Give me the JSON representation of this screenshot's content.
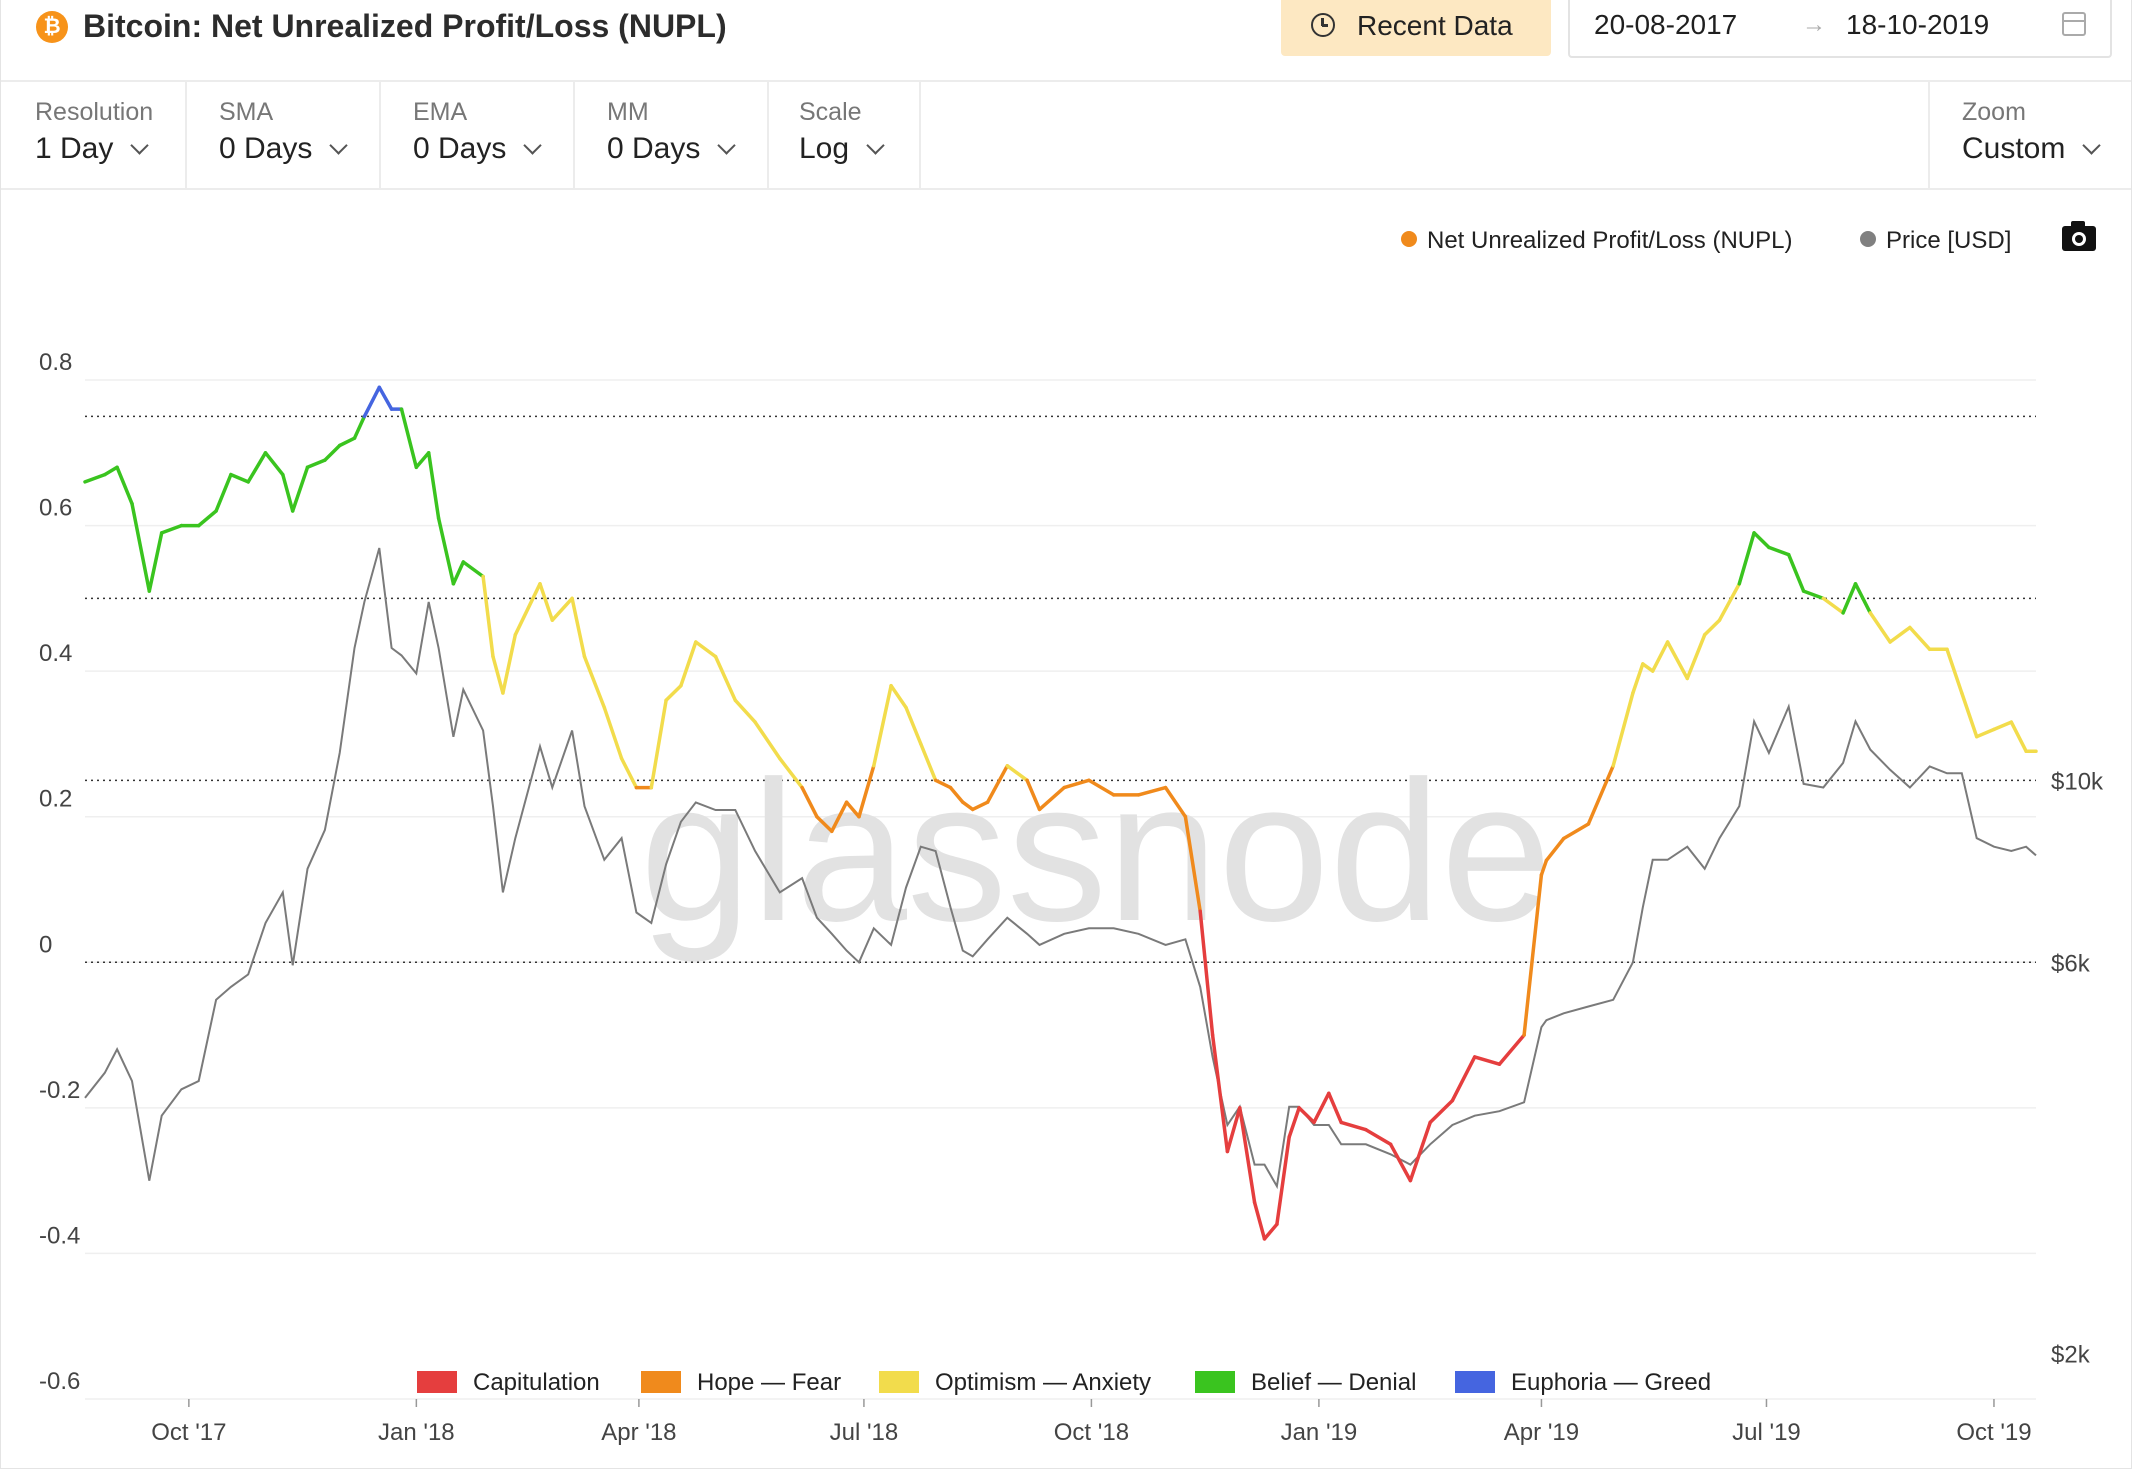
{
  "header": {
    "coin_icon_glyph": "₿",
    "title": "Bitcoin: Net Unrealized Profit/Loss (NUPL)",
    "recent_data_label": "Recent Data",
    "date_from": "20-08-2017",
    "date_arrow": "→",
    "date_to": "18-10-2019"
  },
  "toolbar": {
    "controls": [
      {
        "label": "Resolution",
        "value": "1 Day"
      },
      {
        "label": "SMA",
        "value": "0 Days"
      },
      {
        "label": "EMA",
        "value": "0 Days"
      },
      {
        "label": "MM",
        "value": "0 Days"
      },
      {
        "label": "Scale",
        "value": "Log"
      }
    ],
    "zoom": {
      "label": "Zoom",
      "value": "Custom"
    }
  },
  "watermark": "glassnode",
  "chart_data": {
    "type": "line",
    "title": "Bitcoin: Net Unrealized Profit/Loss (NUPL)",
    "xlabel": "",
    "ylabel": "",
    "x_range": [
      "2017-08-20",
      "2019-10-18"
    ],
    "x_ticks": [
      {
        "date": "2017-10-01",
        "label": "Oct '17"
      },
      {
        "date": "2018-01-01",
        "label": "Jan '18"
      },
      {
        "date": "2018-04-01",
        "label": "Apr '18"
      },
      {
        "date": "2018-07-01",
        "label": "Jul '18"
      },
      {
        "date": "2018-10-01",
        "label": "Oct '18"
      },
      {
        "date": "2019-01-01",
        "label": "Jan '19"
      },
      {
        "date": "2019-04-01",
        "label": "Apr '19"
      },
      {
        "date": "2019-07-01",
        "label": "Jul '19"
      },
      {
        "date": "2019-10-01",
        "label": "Oct '19"
      }
    ],
    "y_left": {
      "min": -0.6,
      "max": 0.8,
      "ticks": [
        "0.8",
        "0.6",
        "0.4",
        "0.2",
        "0",
        "-0.2",
        "-0.4",
        "-0.6"
      ]
    },
    "y_right": {
      "scale": "log",
      "min": 2000,
      "ticks": [
        {
          "value": 10000,
          "label": "$10k"
        },
        {
          "value": 6000,
          "label": "$6k"
        },
        {
          "value": 2000,
          "label": "$2k"
        }
      ]
    },
    "zone_lines": [
      0.75,
      0.5,
      0.25,
      0.0
    ],
    "legend_top": [
      {
        "name": "Net Unrealized Profit/Loss (NUPL)",
        "color": "#f08a1c"
      },
      {
        "name": "Price [USD]",
        "color": "#808080"
      }
    ],
    "zones": [
      {
        "name": "Capitulation",
        "color": "#e53e3e",
        "below": 0.0
      },
      {
        "name": "Hope — Fear",
        "color": "#f08a1c",
        "below": 0.25
      },
      {
        "name": "Optimism — Anxiety",
        "color": "#f2dc4c",
        "below": 0.5
      },
      {
        "name": "Belief — Denial",
        "color": "#3ac41f",
        "below": 0.75
      },
      {
        "name": "Euphoria — Greed",
        "color": "#4565e0",
        "below": 1.0
      }
    ],
    "series": [
      {
        "name": "Net Unrealized Profit/Loss (NUPL)",
        "x": [
          "2017-08-20",
          "2017-08-28",
          "2017-09-02",
          "2017-09-08",
          "2017-09-15",
          "2017-09-20",
          "2017-09-28",
          "2017-10-05",
          "2017-10-12",
          "2017-10-18",
          "2017-10-25",
          "2017-11-01",
          "2017-11-08",
          "2017-11-12",
          "2017-11-18",
          "2017-11-25",
          "2017-12-01",
          "2017-12-07",
          "2017-12-11",
          "2017-12-17",
          "2017-12-22",
          "2017-12-26",
          "2018-01-01",
          "2018-01-06",
          "2018-01-10",
          "2018-01-16",
          "2018-01-20",
          "2018-01-28",
          "2018-02-01",
          "2018-02-05",
          "2018-02-10",
          "2018-02-20",
          "2018-02-25",
          "2018-03-05",
          "2018-03-10",
          "2018-03-18",
          "2018-03-25",
          "2018-03-31",
          "2018-04-06",
          "2018-04-12",
          "2018-04-18",
          "2018-04-24",
          "2018-05-02",
          "2018-05-10",
          "2018-05-18",
          "2018-05-28",
          "2018-06-06",
          "2018-06-12",
          "2018-06-18",
          "2018-06-24",
          "2018-06-29",
          "2018-07-05",
          "2018-07-12",
          "2018-07-18",
          "2018-07-24",
          "2018-07-30",
          "2018-08-05",
          "2018-08-10",
          "2018-08-14",
          "2018-08-20",
          "2018-08-28",
          "2018-09-05",
          "2018-09-10",
          "2018-09-20",
          "2018-09-30",
          "2018-10-10",
          "2018-10-20",
          "2018-10-31",
          "2018-11-08",
          "2018-11-14",
          "2018-11-19",
          "2018-11-25",
          "2018-11-30",
          "2018-12-06",
          "2018-12-10",
          "2018-12-15",
          "2018-12-20",
          "2018-12-24",
          "2018-12-30",
          "2019-01-05",
          "2019-01-10",
          "2019-01-20",
          "2019-01-30",
          "2019-02-07",
          "2019-02-15",
          "2019-02-24",
          "2019-03-05",
          "2019-03-15",
          "2019-03-25",
          "2019-04-01",
          "2019-04-03",
          "2019-04-10",
          "2019-04-20",
          "2019-04-30",
          "2019-05-08",
          "2019-05-12",
          "2019-05-16",
          "2019-05-22",
          "2019-05-30",
          "2019-06-06",
          "2019-06-12",
          "2019-06-20",
          "2019-06-26",
          "2019-07-02",
          "2019-07-10",
          "2019-07-16",
          "2019-07-24",
          "2019-08-01",
          "2019-08-06",
          "2019-08-12",
          "2019-08-20",
          "2019-08-28",
          "2019-09-05",
          "2019-09-12",
          "2019-09-18",
          "2019-09-24",
          "2019-10-01",
          "2019-10-08",
          "2019-10-14",
          "2019-10-18"
        ],
        "values": [
          0.66,
          0.67,
          0.68,
          0.63,
          0.51,
          0.59,
          0.6,
          0.6,
          0.62,
          0.67,
          0.66,
          0.7,
          0.67,
          0.62,
          0.68,
          0.69,
          0.71,
          0.72,
          0.75,
          0.79,
          0.76,
          0.76,
          0.68,
          0.7,
          0.61,
          0.52,
          0.55,
          0.53,
          0.42,
          0.37,
          0.45,
          0.52,
          0.47,
          0.5,
          0.42,
          0.35,
          0.28,
          0.24,
          0.24,
          0.36,
          0.38,
          0.44,
          0.42,
          0.36,
          0.33,
          0.28,
          0.24,
          0.2,
          0.18,
          0.22,
          0.2,
          0.27,
          0.38,
          0.35,
          0.3,
          0.25,
          0.24,
          0.22,
          0.21,
          0.22,
          0.27,
          0.25,
          0.21,
          0.24,
          0.25,
          0.23,
          0.23,
          0.24,
          0.2,
          0.07,
          -0.1,
          -0.26,
          -0.2,
          -0.33,
          -0.38,
          -0.36,
          -0.24,
          -0.2,
          -0.22,
          -0.18,
          -0.22,
          -0.23,
          -0.25,
          -0.3,
          -0.22,
          -0.19,
          -0.13,
          -0.14,
          -0.1,
          0.12,
          0.14,
          0.17,
          0.19,
          0.27,
          0.37,
          0.41,
          0.4,
          0.44,
          0.39,
          0.45,
          0.47,
          0.52,
          0.59,
          0.57,
          0.56,
          0.51,
          0.5,
          0.48,
          0.52,
          0.48,
          0.44,
          0.46,
          0.43,
          0.43,
          0.37,
          0.31,
          0.32,
          0.33,
          0.29,
          0.29
        ]
      },
      {
        "name": "Price [USD]",
        "x": [
          "2017-08-20",
          "2017-08-28",
          "2017-09-02",
          "2017-09-08",
          "2017-09-15",
          "2017-09-20",
          "2017-09-28",
          "2017-10-05",
          "2017-10-12",
          "2017-10-18",
          "2017-10-25",
          "2017-11-01",
          "2017-11-08",
          "2017-11-12",
          "2017-11-18",
          "2017-11-25",
          "2017-12-01",
          "2017-12-07",
          "2017-12-11",
          "2017-12-17",
          "2017-12-22",
          "2017-12-26",
          "2018-01-01",
          "2018-01-06",
          "2018-01-10",
          "2018-01-16",
          "2018-01-20",
          "2018-01-28",
          "2018-02-01",
          "2018-02-05",
          "2018-02-10",
          "2018-02-20",
          "2018-02-25",
          "2018-03-05",
          "2018-03-10",
          "2018-03-18",
          "2018-03-25",
          "2018-03-31",
          "2018-04-06",
          "2018-04-12",
          "2018-04-18",
          "2018-04-24",
          "2018-05-02",
          "2018-05-10",
          "2018-05-18",
          "2018-05-28",
          "2018-06-06",
          "2018-06-12",
          "2018-06-18",
          "2018-06-24",
          "2018-06-29",
          "2018-07-05",
          "2018-07-12",
          "2018-07-18",
          "2018-07-24",
          "2018-07-30",
          "2018-08-05",
          "2018-08-10",
          "2018-08-14",
          "2018-08-20",
          "2018-08-28",
          "2018-09-05",
          "2018-09-10",
          "2018-09-20",
          "2018-09-30",
          "2018-10-10",
          "2018-10-20",
          "2018-10-31",
          "2018-11-08",
          "2018-11-14",
          "2018-11-19",
          "2018-11-25",
          "2018-11-30",
          "2018-12-06",
          "2018-12-10",
          "2018-12-15",
          "2018-12-20",
          "2018-12-24",
          "2018-12-30",
          "2019-01-05",
          "2019-01-10",
          "2019-01-20",
          "2019-01-30",
          "2019-02-07",
          "2019-02-15",
          "2019-02-24",
          "2019-03-05",
          "2019-03-15",
          "2019-03-25",
          "2019-04-01",
          "2019-04-03",
          "2019-04-10",
          "2019-04-20",
          "2019-04-30",
          "2019-05-08",
          "2019-05-12",
          "2019-05-16",
          "2019-05-22",
          "2019-05-30",
          "2019-06-06",
          "2019-06-12",
          "2019-06-20",
          "2019-06-26",
          "2019-07-02",
          "2019-07-10",
          "2019-07-16",
          "2019-07-24",
          "2019-08-01",
          "2019-08-06",
          "2019-08-12",
          "2019-08-20",
          "2019-08-28",
          "2019-09-05",
          "2019-09-12",
          "2019-09-18",
          "2019-09-24",
          "2019-10-01",
          "2019-10-08",
          "2019-10-14",
          "2019-10-18"
        ],
        "values": [
          4100,
          4400,
          4700,
          4300,
          3250,
          3900,
          4200,
          4300,
          5400,
          5600,
          5800,
          6700,
          7300,
          5950,
          7800,
          8700,
          10800,
          14500,
          16500,
          19200,
          14500,
          14200,
          13500,
          16500,
          14500,
          11300,
          12900,
          11500,
          9300,
          7300,
          8500,
          11000,
          9800,
          11500,
          9300,
          8000,
          8500,
          6900,
          6700,
          7900,
          8900,
          9400,
          9200,
          9200,
          8200,
          7300,
          7600,
          6800,
          6500,
          6200,
          6000,
          6600,
          6300,
          7400,
          8300,
          8200,
          7000,
          6200,
          6100,
          6400,
          6800,
          6500,
          6300,
          6500,
          6600,
          6600,
          6500,
          6300,
          6400,
          5600,
          4600,
          3800,
          4000,
          3400,
          3400,
          3200,
          4000,
          4000,
          3800,
          3800,
          3600,
          3600,
          3500,
          3400,
          3600,
          3800,
          3900,
          3950,
          4050,
          5000,
          5100,
          5200,
          5300,
          5400,
          6000,
          7000,
          8000,
          8000,
          8300,
          7800,
          8500,
          9300,
          11800,
          10800,
          12300,
          9900,
          9800,
          10500,
          11800,
          10900,
          10300,
          9800,
          10400,
          10200,
          10200,
          8500,
          8300,
          8200,
          8300,
          8100
        ]
      }
    ],
    "price_ticks": [
      "$10k",
      "$6k",
      "$2k"
    ]
  }
}
